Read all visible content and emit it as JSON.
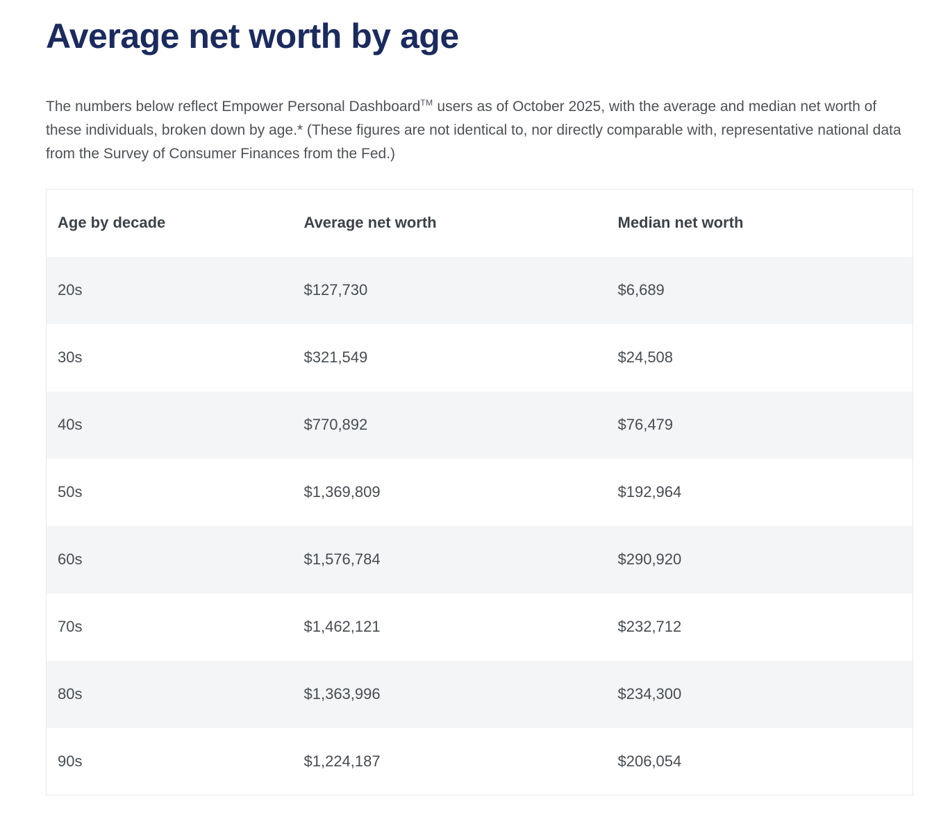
{
  "page": {
    "title": "Average net worth by age"
  },
  "intro": {
    "text_before_tm": "The numbers below reflect Empower Personal Dashboard",
    "trademark": "TM",
    "text_after_tm": " users as of October 2025, with the average and median net worth of these individuals, broken down by age.* (These figures are not identical to, nor directly comparable with, representative national data from the Survey of Consumer Finances from the Fed.)"
  },
  "table": {
    "columns": [
      "Age by decade",
      "Average net worth",
      "Median net worth"
    ],
    "rows": [
      [
        "20s",
        "$127,730",
        "$6,689"
      ],
      [
        "30s",
        "$321,549",
        "$24,508"
      ],
      [
        "40s",
        "$770,892",
        "$76,479"
      ],
      [
        "50s",
        "$1,369,809",
        "$192,964"
      ],
      [
        "60s",
        "$1,576,784",
        "$290,920"
      ],
      [
        "70s",
        "$1,462,121",
        "$232,712"
      ],
      [
        "80s",
        "$1,363,996",
        "$234,300"
      ],
      [
        "90s",
        "$1,224,187",
        "$206,054"
      ]
    ]
  },
  "colors": {
    "title_navy": "#1b2b5e",
    "body_text": "#4d5156",
    "header_text": "#3c4248",
    "cell_text": "#474c51",
    "row_alt_bg": "#f4f5f6",
    "table_border": "#e8e9eb"
  }
}
